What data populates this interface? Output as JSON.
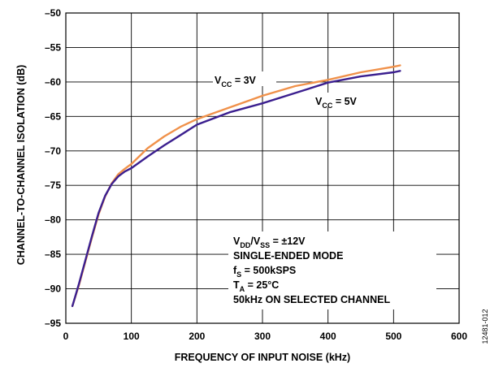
{
  "chart_data": {
    "type": "line",
    "xlabel": "FREQUENCY OF INPUT NOISE (kHz)",
    "ylabel": "CHANNEL-TO-CHANNEL ISOLATION (dB)",
    "xlim": [
      0,
      600
    ],
    "ylim": [
      -95,
      -50
    ],
    "x_ticks": [
      0,
      100,
      200,
      300,
      400,
      500,
      600
    ],
    "y_ticks": [
      -95,
      -90,
      -85,
      -80,
      -75,
      -70,
      -65,
      -60,
      -55,
      -50
    ],
    "x_tick_labels": [
      "0",
      "100",
      "200",
      "300",
      "400",
      "500",
      "600"
    ],
    "y_tick_labels": [
      "–95",
      "–90",
      "–85",
      "–80",
      "–75",
      "–70",
      "–65",
      "–60",
      "–55",
      "–50"
    ],
    "grid": true,
    "series": [
      {
        "label_main": "V",
        "label_sub": "CC",
        "label_rest": " = 3V",
        "color": "#f0914a",
        "x": [
          10,
          20,
          30,
          40,
          50,
          60,
          70,
          80,
          90,
          100,
          125,
          150,
          175,
          200,
          250,
          300,
          350,
          400,
          450,
          500,
          510
        ],
        "y": [
          -92.5,
          -89.5,
          -86.0,
          -82.5,
          -79.2,
          -76.6,
          -74.7,
          -73.4,
          -72.6,
          -71.9,
          -69.6,
          -67.9,
          -66.5,
          -65.4,
          -63.7,
          -62.0,
          -60.6,
          -59.7,
          -58.6,
          -57.8,
          -57.6
        ]
      },
      {
        "label_main": "V",
        "label_sub": "CC",
        "label_rest": " = 5V",
        "color": "#3b1f8f",
        "x": [
          10,
          20,
          30,
          40,
          50,
          60,
          70,
          80,
          90,
          100,
          125,
          150,
          175,
          200,
          250,
          300,
          350,
          400,
          450,
          500,
          510
        ],
        "y": [
          -92.5,
          -89.3,
          -85.8,
          -82.3,
          -79.0,
          -76.5,
          -74.8,
          -73.7,
          -73.0,
          -72.5,
          -70.8,
          -69.2,
          -67.7,
          -66.2,
          -64.4,
          -63.1,
          -61.6,
          -60.1,
          -59.2,
          -58.6,
          -58.4
        ]
      }
    ],
    "annotation_lines": [
      {
        "a": "V",
        "a_sub": "DD",
        "b": "/V",
        "b_sub": "SS",
        "c": " = ±12V"
      },
      {
        "a": "SINGLE-ENDED MODE",
        "a_sub": "",
        "b": "",
        "b_sub": "",
        "c": ""
      },
      {
        "a": "f",
        "a_sub": "S",
        "b": " = 500kSPS",
        "b_sub": "",
        "c": ""
      },
      {
        "a": "T",
        "a_sub": "A",
        "b": " = 25°C",
        "b_sub": "",
        "c": ""
      },
      {
        "a": "50kHz ON SELECTED CHANNEL",
        "a_sub": "",
        "b": "",
        "b_sub": "",
        "c": ""
      }
    ],
    "figure_id": "12481-012"
  }
}
